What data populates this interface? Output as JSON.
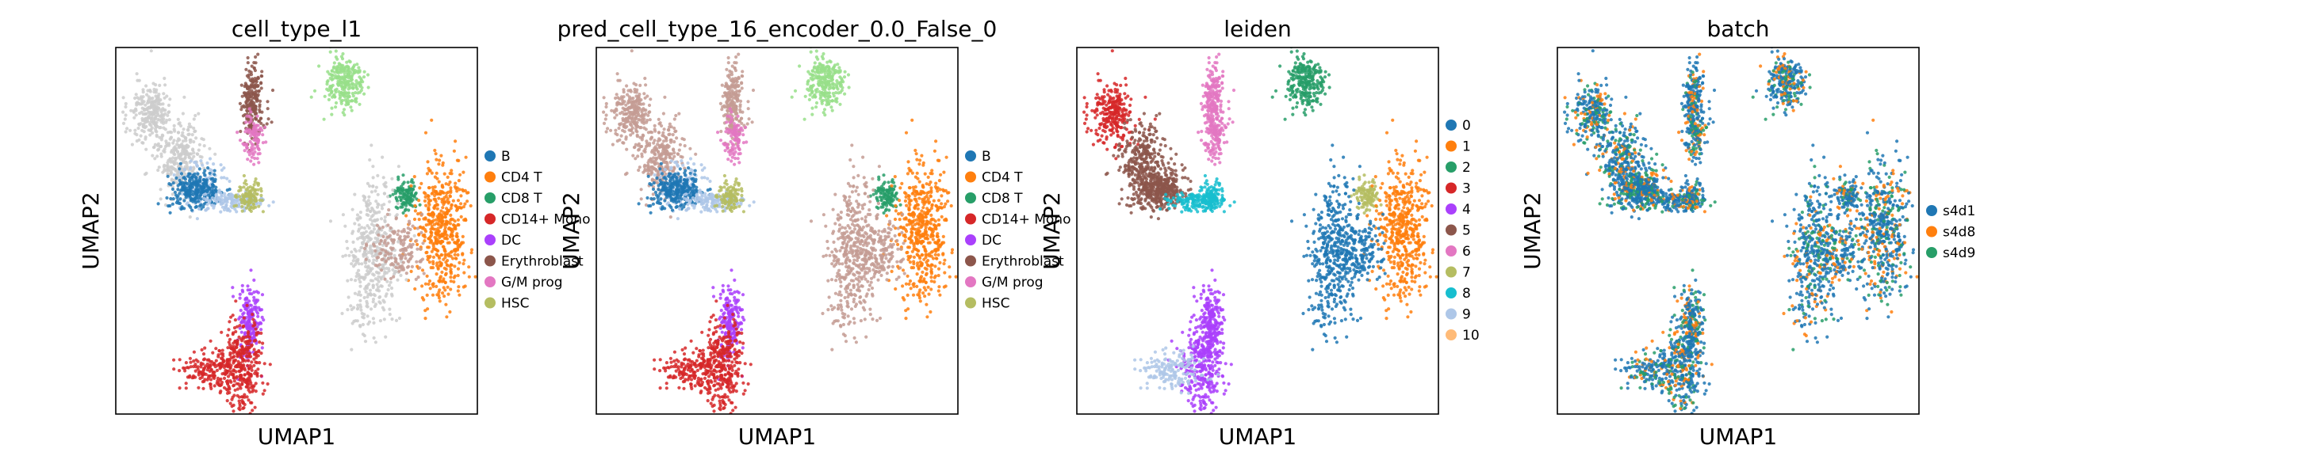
{
  "chart_data": [
    {
      "type": "scatter",
      "title": "cell_type_l1",
      "xlabel": "UMAP1",
      "ylabel": "UMAP2",
      "legend_position": "right",
      "legend": [
        {
          "label": "B",
          "color": "#1f77b4"
        },
        {
          "label": "CD4 T",
          "color": "#ff7f0e"
        },
        {
          "label": "CD8 T",
          "color": "#279e68"
        },
        {
          "label": "CD14+ Mono",
          "color": "#d62728"
        },
        {
          "label": "DC",
          "color": "#aa40fc"
        },
        {
          "label": "Erythroblast",
          "color": "#8c564b"
        },
        {
          "label": "G/M prog",
          "color": "#e377c2"
        },
        {
          "label": "HSC",
          "color": "#b5bd61"
        }
      ]
    },
    {
      "type": "scatter",
      "title": "pred_cell_type_16_encoder_0.0_False_0",
      "xlabel": "UMAP1",
      "ylabel": "UMAP2",
      "legend_position": "right",
      "legend": [
        {
          "label": "B",
          "color": "#1f77b4"
        },
        {
          "label": "CD4 T",
          "color": "#ff7f0e"
        },
        {
          "label": "CD8 T",
          "color": "#279e68"
        },
        {
          "label": "CD14+ Mono",
          "color": "#d62728"
        },
        {
          "label": "DC",
          "color": "#aa40fc"
        },
        {
          "label": "Erythroblast",
          "color": "#8c564b"
        },
        {
          "label": "G/M prog",
          "color": "#e377c2"
        },
        {
          "label": "HSC",
          "color": "#b5bd61"
        }
      ]
    },
    {
      "type": "scatter",
      "title": "leiden",
      "xlabel": "UMAP1",
      "ylabel": "UMAP2",
      "legend_position": "right",
      "legend": [
        {
          "label": "0",
          "color": "#1f77b4"
        },
        {
          "label": "1",
          "color": "#ff7f0e"
        },
        {
          "label": "2",
          "color": "#279e68"
        },
        {
          "label": "3",
          "color": "#d62728"
        },
        {
          "label": "4",
          "color": "#aa40fc"
        },
        {
          "label": "5",
          "color": "#8c564b"
        },
        {
          "label": "6",
          "color": "#e377c2"
        },
        {
          "label": "7",
          "color": "#b5bd61"
        },
        {
          "label": "8",
          "color": "#17becf"
        },
        {
          "label": "9",
          "color": "#aec7e8"
        },
        {
          "label": "10",
          "color": "#ffbb78"
        }
      ]
    },
    {
      "type": "scatter",
      "title": "batch",
      "xlabel": "UMAP1",
      "ylabel": "UMAP2",
      "legend_position": "right",
      "legend": [
        {
          "label": "s4d1",
          "color": "#1f77b4"
        },
        {
          "label": "s4d8",
          "color": "#ff7f0e"
        },
        {
          "label": "s4d9",
          "color": "#279e68"
        }
      ]
    }
  ],
  "colors": {
    "unassigned": "#cccccc",
    "pred_neighbor": "#c49c94",
    "frame": "#000000"
  }
}
